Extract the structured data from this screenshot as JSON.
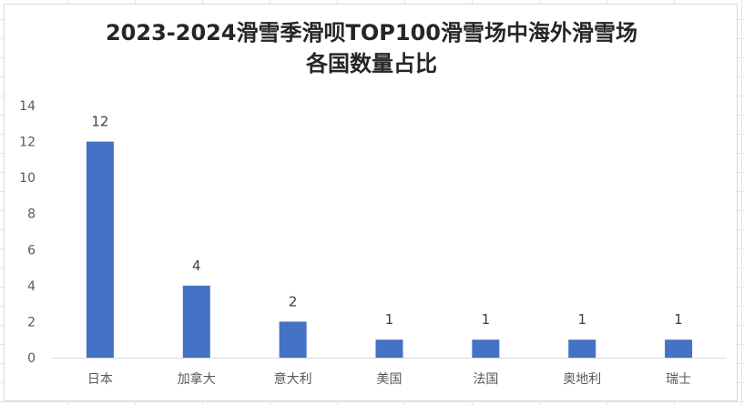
{
  "chart_data": {
    "type": "bar",
    "title_lines": [
      "2023-2024滑雪季滑呗TOP100滑雪场中海外滑雪场",
      "各国数量占比"
    ],
    "categories": [
      "日本",
      "加拿大",
      "意大利",
      "美国",
      "法国",
      "奥地利",
      "瑞士"
    ],
    "values": [
      12,
      4,
      2,
      1,
      1,
      1,
      1
    ],
    "ylim": [
      0,
      14
    ],
    "yticks": [
      0,
      2,
      4,
      6,
      8,
      10,
      12,
      14
    ],
    "grid": false,
    "legend": "none",
    "bar_color": "#4472c4"
  }
}
